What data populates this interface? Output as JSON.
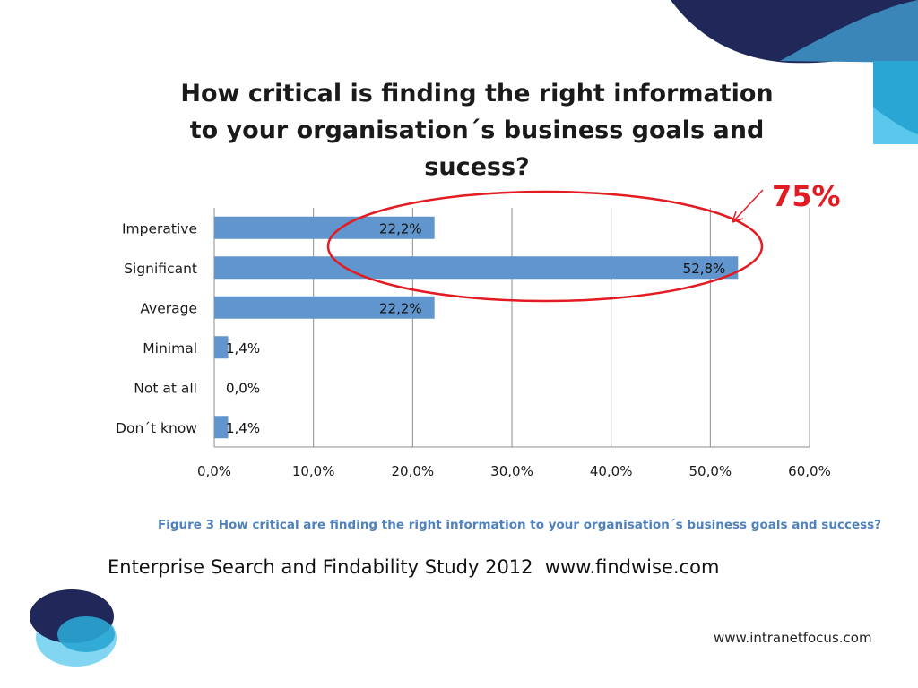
{
  "chart_data": {
    "type": "bar",
    "orientation": "horizontal",
    "title": "How critical is finding the right information to your organisation´s business goals and sucess?",
    "title_lines": [
      "How critical is finding the right information",
      "to your organisation´s business goals and",
      "sucess?"
    ],
    "categories": [
      "Imperative",
      "Significant",
      "Average",
      "Minimal",
      "Not at all",
      "Don´t know"
    ],
    "values": [
      22.2,
      52.8,
      22.2,
      1.4,
      0.0,
      1.4
    ],
    "data_labels": [
      "22,2%",
      "52,8%",
      "22,2%",
      "1,4%",
      "0,0%",
      "1,4%"
    ],
    "xlim": [
      0,
      60
    ],
    "x_ticks": [
      0,
      10,
      20,
      30,
      40,
      50,
      60
    ],
    "x_tick_labels": [
      "0,0%",
      "10,0%",
      "20,0%",
      "30,0%",
      "40,0%",
      "50,0%",
      "60,0%"
    ],
    "xlabel": "",
    "ylabel": "",
    "grid": "vertical",
    "bar_color": "#6095cd",
    "annotation": {
      "text": "75%",
      "color": "#e31b23",
      "highlighted_categories": [
        "Imperative",
        "Significant"
      ]
    }
  },
  "caption": "Figure 3 How critical are finding the right information to your organisation´s business goals and success?",
  "source_line": "Enterprise Search and Findability Study 2012  www.findwise.com",
  "footer_url": "www.intranetfocus.com",
  "colors": {
    "navy": "#1f2859",
    "blue": "#2aa6d4",
    "light_blue": "#5ac8ec",
    "annotation_red": "#e31b23",
    "caption_blue": "#4f81bd"
  }
}
